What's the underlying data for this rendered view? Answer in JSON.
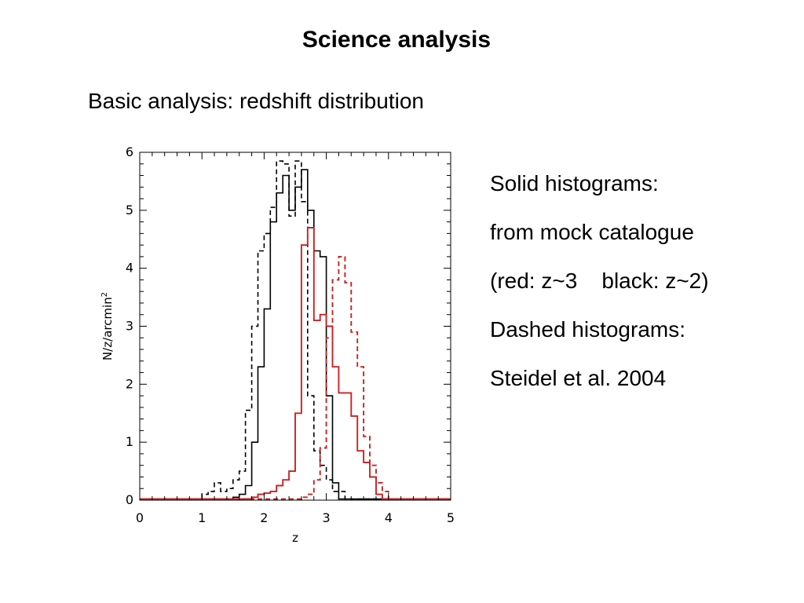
{
  "slide": {
    "title": "Science analysis",
    "subtitle": "Basic analysis:  redshift distribution",
    "notes": [
      "Solid histograms:",
      "from mock catalogue",
      "(red: z~3    black: z~2)",
      "Dashed histograms:",
      "Steidel et al. 2004"
    ]
  },
  "chart_data": {
    "type": "histogram",
    "title": "",
    "xlabel": "z",
    "ylabel": "N/z/arcmin",
    "ylabel_sup": "2",
    "xlim": [
      0,
      5
    ],
    "ylim": [
      0,
      6
    ],
    "x_ticks": [
      0,
      1,
      2,
      3,
      4,
      5
    ],
    "y_ticks": [
      0,
      1,
      2,
      3,
      4,
      5,
      6
    ],
    "bin_width": 0.1,
    "series": [
      {
        "color": "#000000",
        "dashed": false,
        "bins_start": 1.2,
        "values": [
          0.02,
          0.02,
          0.02,
          0.05,
          0.1,
          0.25,
          1.0,
          2.3,
          3.3,
          4.8,
          5.3,
          5.6,
          5.0,
          5.4,
          5.7,
          5.0,
          4.3,
          4.2,
          1.8,
          0.3,
          0.02,
          0.02
        ]
      },
      {
        "color": "#000000",
        "dashed": true,
        "bins_start": 1.0,
        "values": [
          0.1,
          0.15,
          0.3,
          0.15,
          0.2,
          0.35,
          0.5,
          1.55,
          3.0,
          4.3,
          4.6,
          5.05,
          5.85,
          5.8,
          4.9,
          5.85,
          5.15,
          1.8,
          0.85,
          0.6,
          0.35,
          0.15,
          0.15,
          0.02,
          0.02
        ]
      },
      {
        "color": "#cc2222",
        "dashed": false,
        "bins_start": 1.7,
        "values": [
          0.02,
          0.05,
          0.1,
          0.12,
          0.15,
          0.25,
          0.35,
          0.5,
          1.5,
          4.4,
          4.7,
          3.1,
          3.2,
          3.0,
          2.3,
          1.85,
          1.85,
          1.45,
          0.85,
          0.65,
          0.4,
          0.1,
          0.02
        ]
      },
      {
        "color": "#cc2222",
        "dashed": true,
        "bins_start": 2.6,
        "values": [
          0.05,
          0.1,
          0.35,
          0.9,
          2.8,
          3.8,
          4.2,
          3.75,
          2.9,
          2.3,
          1.1,
          0.6,
          0.3,
          0.15,
          0.02
        ]
      }
    ]
  }
}
